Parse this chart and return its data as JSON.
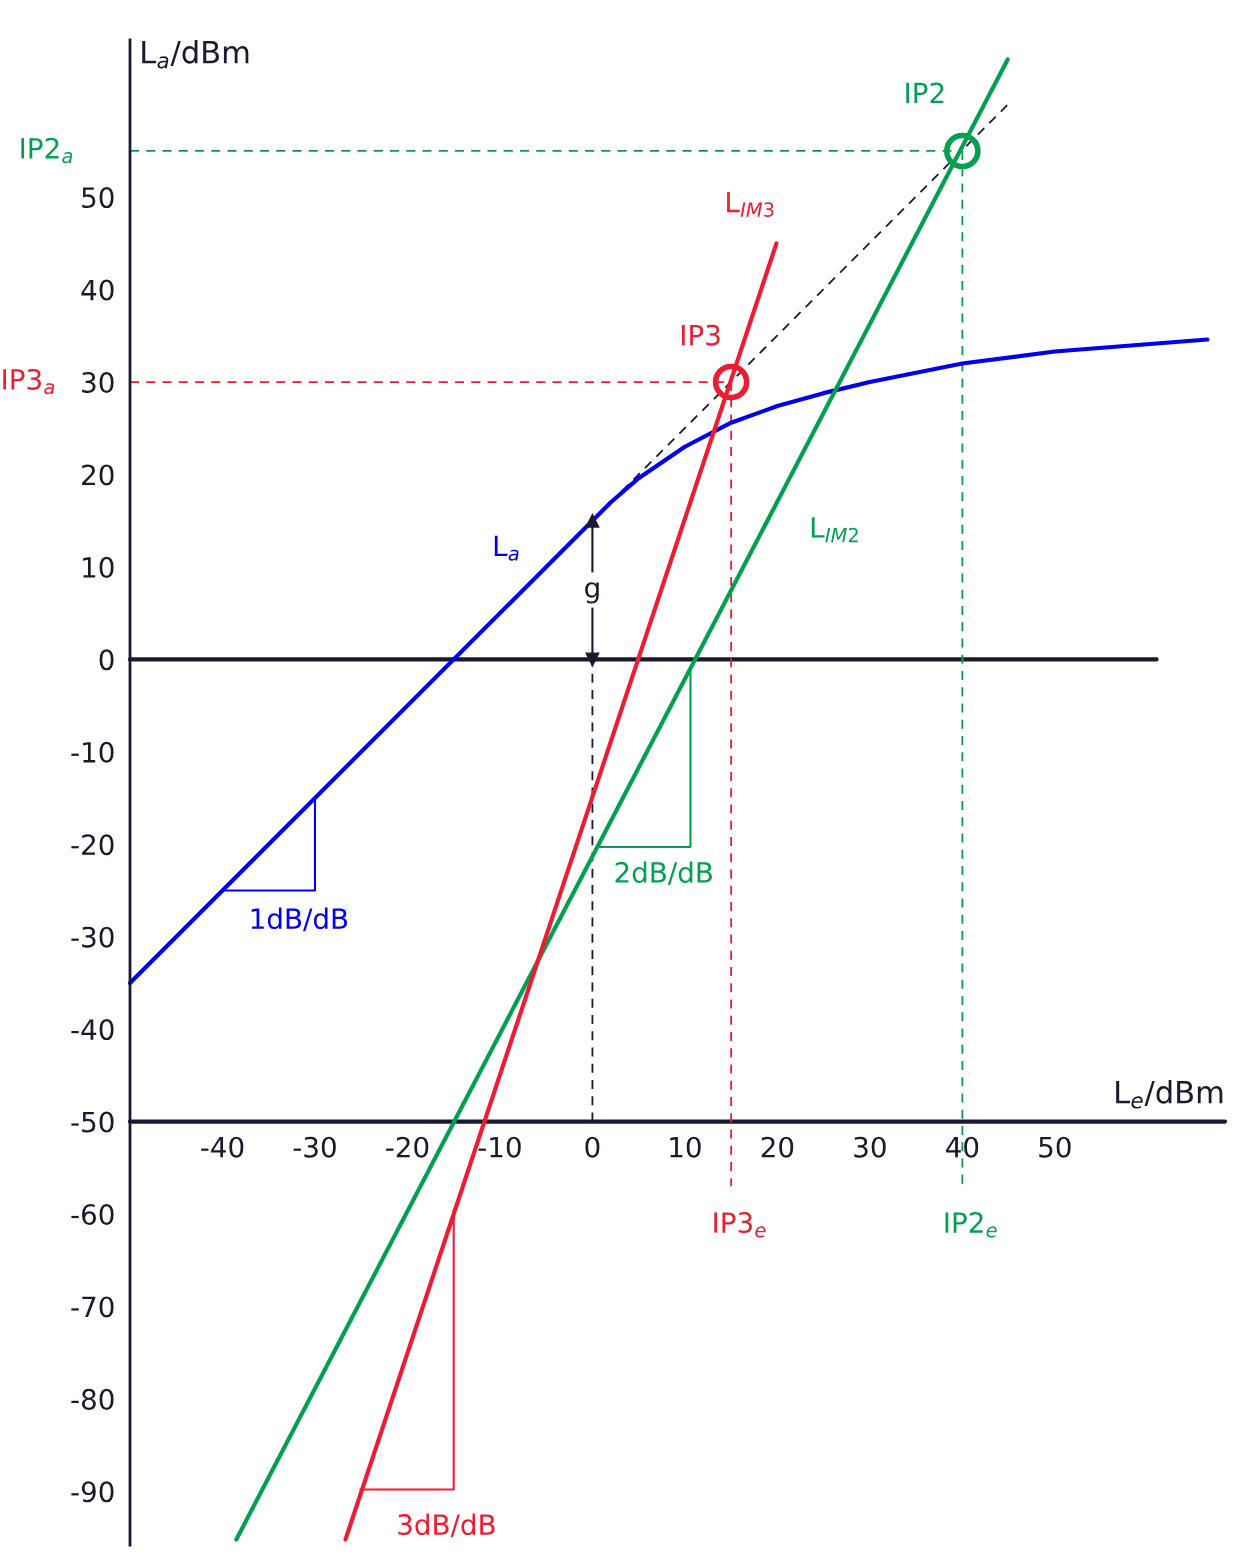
{
  "chart_data": {
    "type": "line",
    "xlabel": "L$_{e}$/dBm",
    "ylabel": "L$_{a}$/dBm",
    "xlim": [
      -50,
      68.4
    ],
    "ylim": [
      -95.8,
      67
    ],
    "xticks": [
      -40,
      -30,
      -20,
      -10,
      0,
      10,
      20,
      30,
      40,
      50
    ],
    "yticks": [
      -90,
      -80,
      -70,
      -60,
      -50,
      -40,
      -30,
      -20,
      -10,
      0,
      10,
      20,
      30,
      40,
      50
    ],
    "grid": false,
    "legend": false,
    "series": [
      {
        "color": "#1a1a2e",
        "line_style": "solid",
        "x": [
          -50,
          61
        ],
        "values": [
          0,
          0
        ]
      },
      {
        "color": "#1a1a2e",
        "line_style": "solid",
        "x": [
          -50,
          68.4
        ],
        "values": [
          -50,
          -50
        ]
      },
      {
        "name": "IP2$_{a}$",
        "color": "#00a050",
        "line_style": "dashed",
        "x": [
          -50,
          40
        ],
        "values": [
          55,
          55
        ]
      },
      {
        "name": "IP3$_{a}$",
        "color": "#ee1c2e",
        "line_style": "dashed",
        "x": [
          -50,
          15
        ],
        "values": [
          30,
          30
        ]
      },
      {
        "color": "#1a1a2e",
        "line_style": "dashed",
        "x": [
          0,
          0
        ],
        "values": [
          -50,
          0
        ]
      },
      {
        "name": "IP3$_{e}$",
        "color": "#ee1c2e",
        "line_style": "dashed",
        "x": [
          15,
          15
        ],
        "values": [
          30,
          -57
        ]
      },
      {
        "name": "IP2$_{e}$",
        "color": "#00a050",
        "line_style": "dashed",
        "x": [
          40,
          40
        ],
        "values": [
          55,
          -57
        ]
      },
      {
        "color": "#1a1a2e",
        "line_style": "dashed",
        "x": [
          3.2,
          44.9
        ],
        "values": [
          18.2,
          60
        ]
      },
      {
        "name": "1dB/dB",
        "color": "#0000ee",
        "line_style": "solid",
        "x": [
          -40,
          -30,
          -30
        ],
        "values": [
          -25,
          -25,
          -15
        ]
      },
      {
        "name": "2dB/dB",
        "color": "#00a050",
        "line_style": "solid",
        "x": [
          0.5,
          10.6,
          10.6
        ],
        "values": [
          -20.3,
          -20.3,
          -1
        ]
      },
      {
        "name": "3dB/dB",
        "color": "#ee1c2e",
        "line_style": "solid",
        "x": [
          -25.1,
          -15,
          -15
        ],
        "values": [
          -89.8,
          -89.8,
          -59.5
        ]
      },
      {
        "name": "L$_{a}$",
        "color": "#0000ee",
        "line_style": "solid",
        "x": [
          -50,
          -9,
          0,
          2,
          5,
          10,
          15,
          20,
          25,
          30,
          40,
          50,
          66.5
        ],
        "values": [
          -35,
          6,
          15,
          17,
          19.6,
          23,
          25.6,
          27.4,
          28.8,
          30,
          32,
          33.3,
          34.6
        ]
      },
      {
        "name": "L$_{IM2}$",
        "color": "#00a050",
        "line_style": "solid",
        "x": [
          -38.5,
          18.4,
          44.9
        ],
        "values": [
          -95.2,
          14.0,
          64.9
        ]
      },
      {
        "name": "L$_{IM3}$",
        "color": "#ee1c2e",
        "line_style": "solid",
        "x": [
          -26.7,
          19.9
        ],
        "values": [
          -95.2,
          45
        ]
      },
      {
        "type": "scatter",
        "name": "IP3",
        "color": "#ee1c2e",
        "marker": "circle",
        "x": [
          15
        ],
        "values": [
          30
        ]
      },
      {
        "type": "scatter",
        "name": "IP2",
        "color": "#00a050",
        "marker": "circle",
        "x": [
          40
        ],
        "values": [
          55
        ]
      },
      {
        "name": "g",
        "color": "#1a1a2e",
        "line_style": "solid",
        "marker": "triangle",
        "x": [
          0,
          0
        ],
        "values": [
          0,
          15
        ]
      }
    ]
  }
}
